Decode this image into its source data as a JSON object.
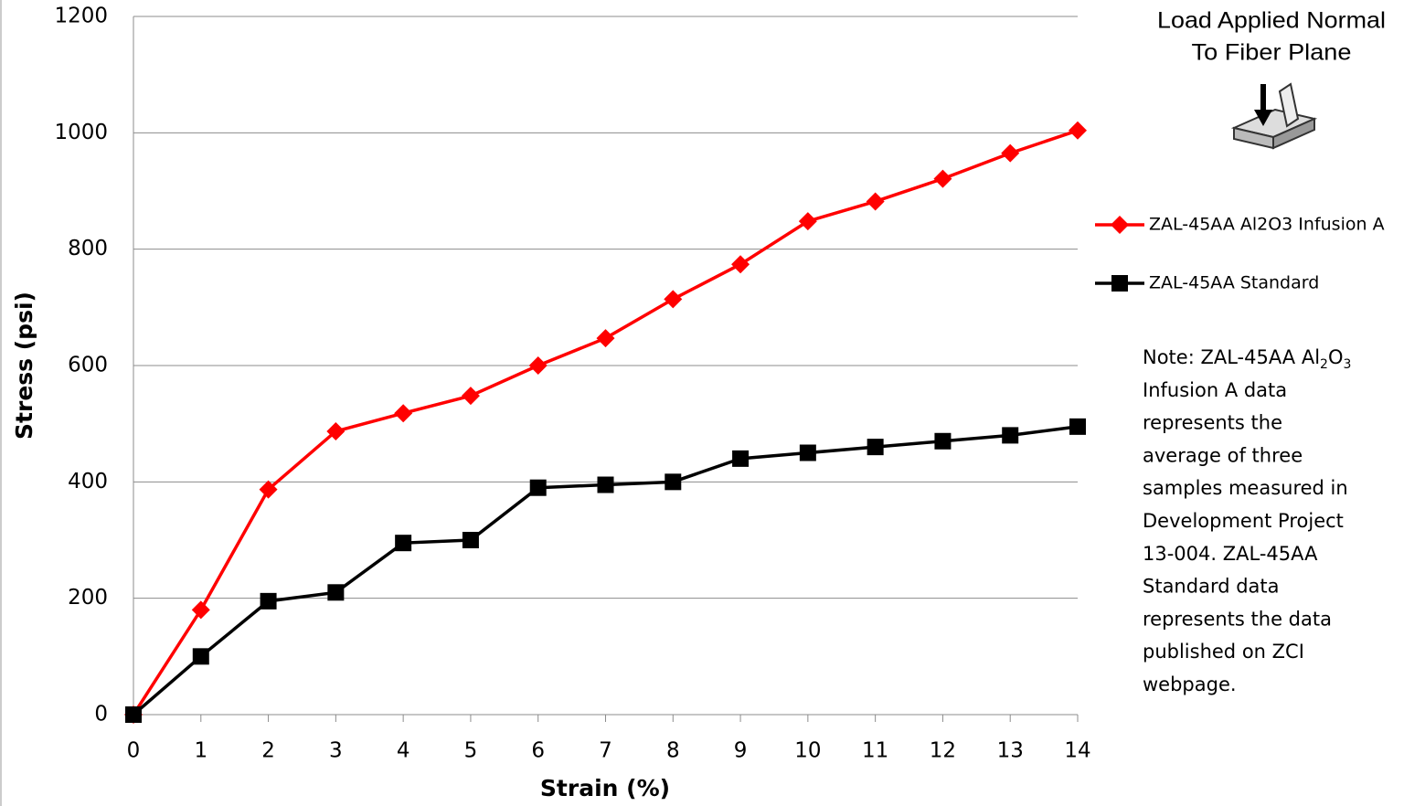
{
  "chart_data": {
    "type": "line",
    "x_label": "Strain (%)",
    "y_label": "Stress (psi)",
    "x": [
      0,
      1,
      2,
      3,
      4,
      5,
      6,
      7,
      8,
      9,
      10,
      11,
      12,
      13,
      14
    ],
    "xlim": [
      0,
      14
    ],
    "xticks": [
      0,
      1,
      2,
      3,
      4,
      5,
      6,
      7,
      8,
      9,
      10,
      11,
      12,
      13,
      14
    ],
    "ylim": [
      0,
      1200
    ],
    "yticks": [
      0,
      200,
      400,
      600,
      800,
      1000,
      1200
    ],
    "grid": true,
    "legend": "right",
    "series": [
      {
        "name": "ZAL-45AA Al2O3 Infusion A",
        "color": "#ff0000",
        "marker": "diamond",
        "values": [
          0,
          180,
          387,
          487,
          518,
          548,
          600,
          647,
          714,
          774,
          848,
          882,
          921,
          965,
          1004
        ]
      },
      {
        "name": "ZAL-45AA Standard",
        "color": "#000000",
        "marker": "square",
        "values": [
          0,
          100,
          195,
          210,
          295,
          300,
          390,
          395,
          400,
          440,
          450,
          460,
          470,
          480,
          495
        ]
      }
    ],
    "load_label": [
      "Load Applied Normal",
      "To Fiber Plane"
    ],
    "note_lines": [
      [
        "Note: ZAL-45AA Al",
        "2",
        "O",
        "3"
      ],
      "Infusion A data",
      "represents the",
      "average of three",
      "samples measured in",
      "Development Project",
      "13-004. ZAL-45AA",
      "Standard data",
      "represents the data",
      "published on ZCI",
      "webpage."
    ]
  }
}
